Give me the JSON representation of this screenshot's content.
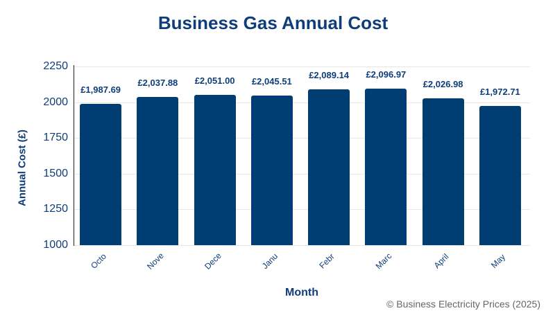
{
  "chart_data": {
    "type": "bar",
    "title": "Business Gas Annual Cost",
    "xlabel": "Month",
    "ylabel": "Annual Cost (£)",
    "categories": [
      "Octo",
      "Nove",
      "Dece",
      "Janu",
      "Febr",
      "Marc",
      "April",
      "May"
    ],
    "values": [
      1987.69,
      2037.88,
      2051.0,
      2045.51,
      2089.14,
      2096.97,
      2026.98,
      1972.71
    ],
    "value_labels": [
      "£1,987.69",
      "£2,037.88",
      "£2,051.00",
      "£2,045.51",
      "£2,089.14",
      "£2,096.97",
      "£2,026.98",
      "£1,972.71"
    ],
    "ylim": [
      1000,
      2250
    ],
    "yticks": [
      "2250",
      "2000",
      "1750",
      "1500",
      "1250",
      "1000"
    ],
    "grid": true,
    "legend": null,
    "bar_color": "#003d73"
  },
  "footer": {
    "credit": "© Business Electricity Prices (2025)"
  }
}
